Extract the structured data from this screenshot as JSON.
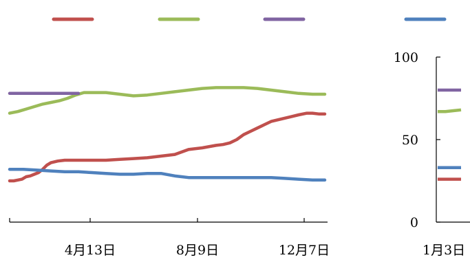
{
  "colors": {
    "red": "#c0504d",
    "green": "#9bbb59",
    "purple": "#8064a2",
    "blue": "#4f81bd",
    "axis": "#000000"
  },
  "legend": {
    "labels": [
      "",
      "",
      "",
      ""
    ]
  },
  "chart_data": [
    {
      "type": "line",
      "title": "",
      "xlabel": "",
      "ylabel": "",
      "grid": false,
      "legend_position": "top",
      "x_tick_labels": [
        "4月13日",
        "8月9日",
        "12月7日"
      ],
      "series": [
        {
          "color": "#c0504d",
          "x": [
            0,
            6,
            12,
            18,
            24,
            30,
            36,
            42,
            48,
            54,
            60,
            70,
            80,
            90,
            100,
            110,
            120,
            140,
            160,
            180,
            200,
            220,
            240,
            260,
            280,
            300,
            310,
            320,
            330,
            340,
            350,
            360,
            370,
            380,
            390,
            400,
            410,
            420,
            432,
            440,
            450,
            458
          ],
          "values": [
            25,
            25,
            25.5,
            26,
            27.5,
            28,
            29,
            30,
            32,
            34.5,
            36,
            37,
            37.5,
            37.5,
            37.5,
            37.5,
            37.5,
            37.5,
            38,
            38.5,
            39,
            40,
            41,
            44,
            45,
            46.5,
            47,
            48,
            50,
            53,
            55,
            57,
            59,
            61,
            62,
            63,
            64,
            65,
            66,
            66,
            65.5,
            65.5
          ]
        },
        {
          "color": "#9bbb59",
          "x": [
            0,
            12,
            24,
            36,
            48,
            60,
            72,
            84,
            96,
            108,
            120,
            140,
            160,
            180,
            200,
            220,
            240,
            260,
            280,
            300,
            320,
            340,
            360,
            380,
            400,
            420,
            440,
            458
          ],
          "values": [
            66,
            67,
            68.5,
            70,
            71.5,
            72.5,
            73.5,
            75,
            77,
            78.5,
            78.5,
            78.5,
            77.5,
            76.5,
            77,
            78,
            79,
            80,
            81,
            81.5,
            81.5,
            81.5,
            81,
            80,
            79,
            78,
            77.5,
            77.5
          ]
        },
        {
          "color": "#8064a2",
          "x": [
            0,
            20,
            40,
            60,
            80,
            100
          ],
          "values": [
            78,
            78,
            78,
            78,
            78,
            78
          ]
        },
        {
          "color": "#4f81bd",
          "x": [
            0,
            20,
            40,
            60,
            80,
            100,
            120,
            140,
            160,
            180,
            200,
            220,
            240,
            260,
            280,
            300,
            320,
            340,
            360,
            380,
            400,
            420,
            440,
            458
          ],
          "values": [
            32,
            32,
            31.5,
            31,
            30.5,
            30.5,
            30,
            29.5,
            29,
            29,
            29.5,
            29.5,
            28,
            27,
            27,
            27,
            27,
            27,
            27,
            27,
            26.5,
            26,
            25.5,
            25.5
          ]
        }
      ]
    },
    {
      "type": "line",
      "title": "",
      "xlabel": "",
      "ylabel": "",
      "grid": false,
      "ylim": [
        0,
        100
      ],
      "y_ticks": [
        0,
        50,
        100
      ],
      "y_tick_labels": [
        "0",
        "50",
        "100"
      ],
      "x_tick_labels": [
        "1月3日"
      ],
      "series": [
        {
          "color": "#c0504d",
          "x": [
            0,
            10,
            20,
            30
          ],
          "values": [
            26,
            26,
            26,
            26
          ]
        },
        {
          "color": "#9bbb59",
          "x": [
            0,
            10,
            20,
            30
          ],
          "values": [
            67,
            67,
            67.5,
            68
          ]
        },
        {
          "color": "#8064a2",
          "x": [
            0,
            10,
            20,
            30
          ],
          "values": [
            80,
            80,
            80,
            80
          ]
        },
        {
          "color": "#4f81bd",
          "x": [
            0,
            10,
            20,
            30
          ],
          "values": [
            33,
            33,
            33,
            33
          ]
        }
      ]
    }
  ]
}
